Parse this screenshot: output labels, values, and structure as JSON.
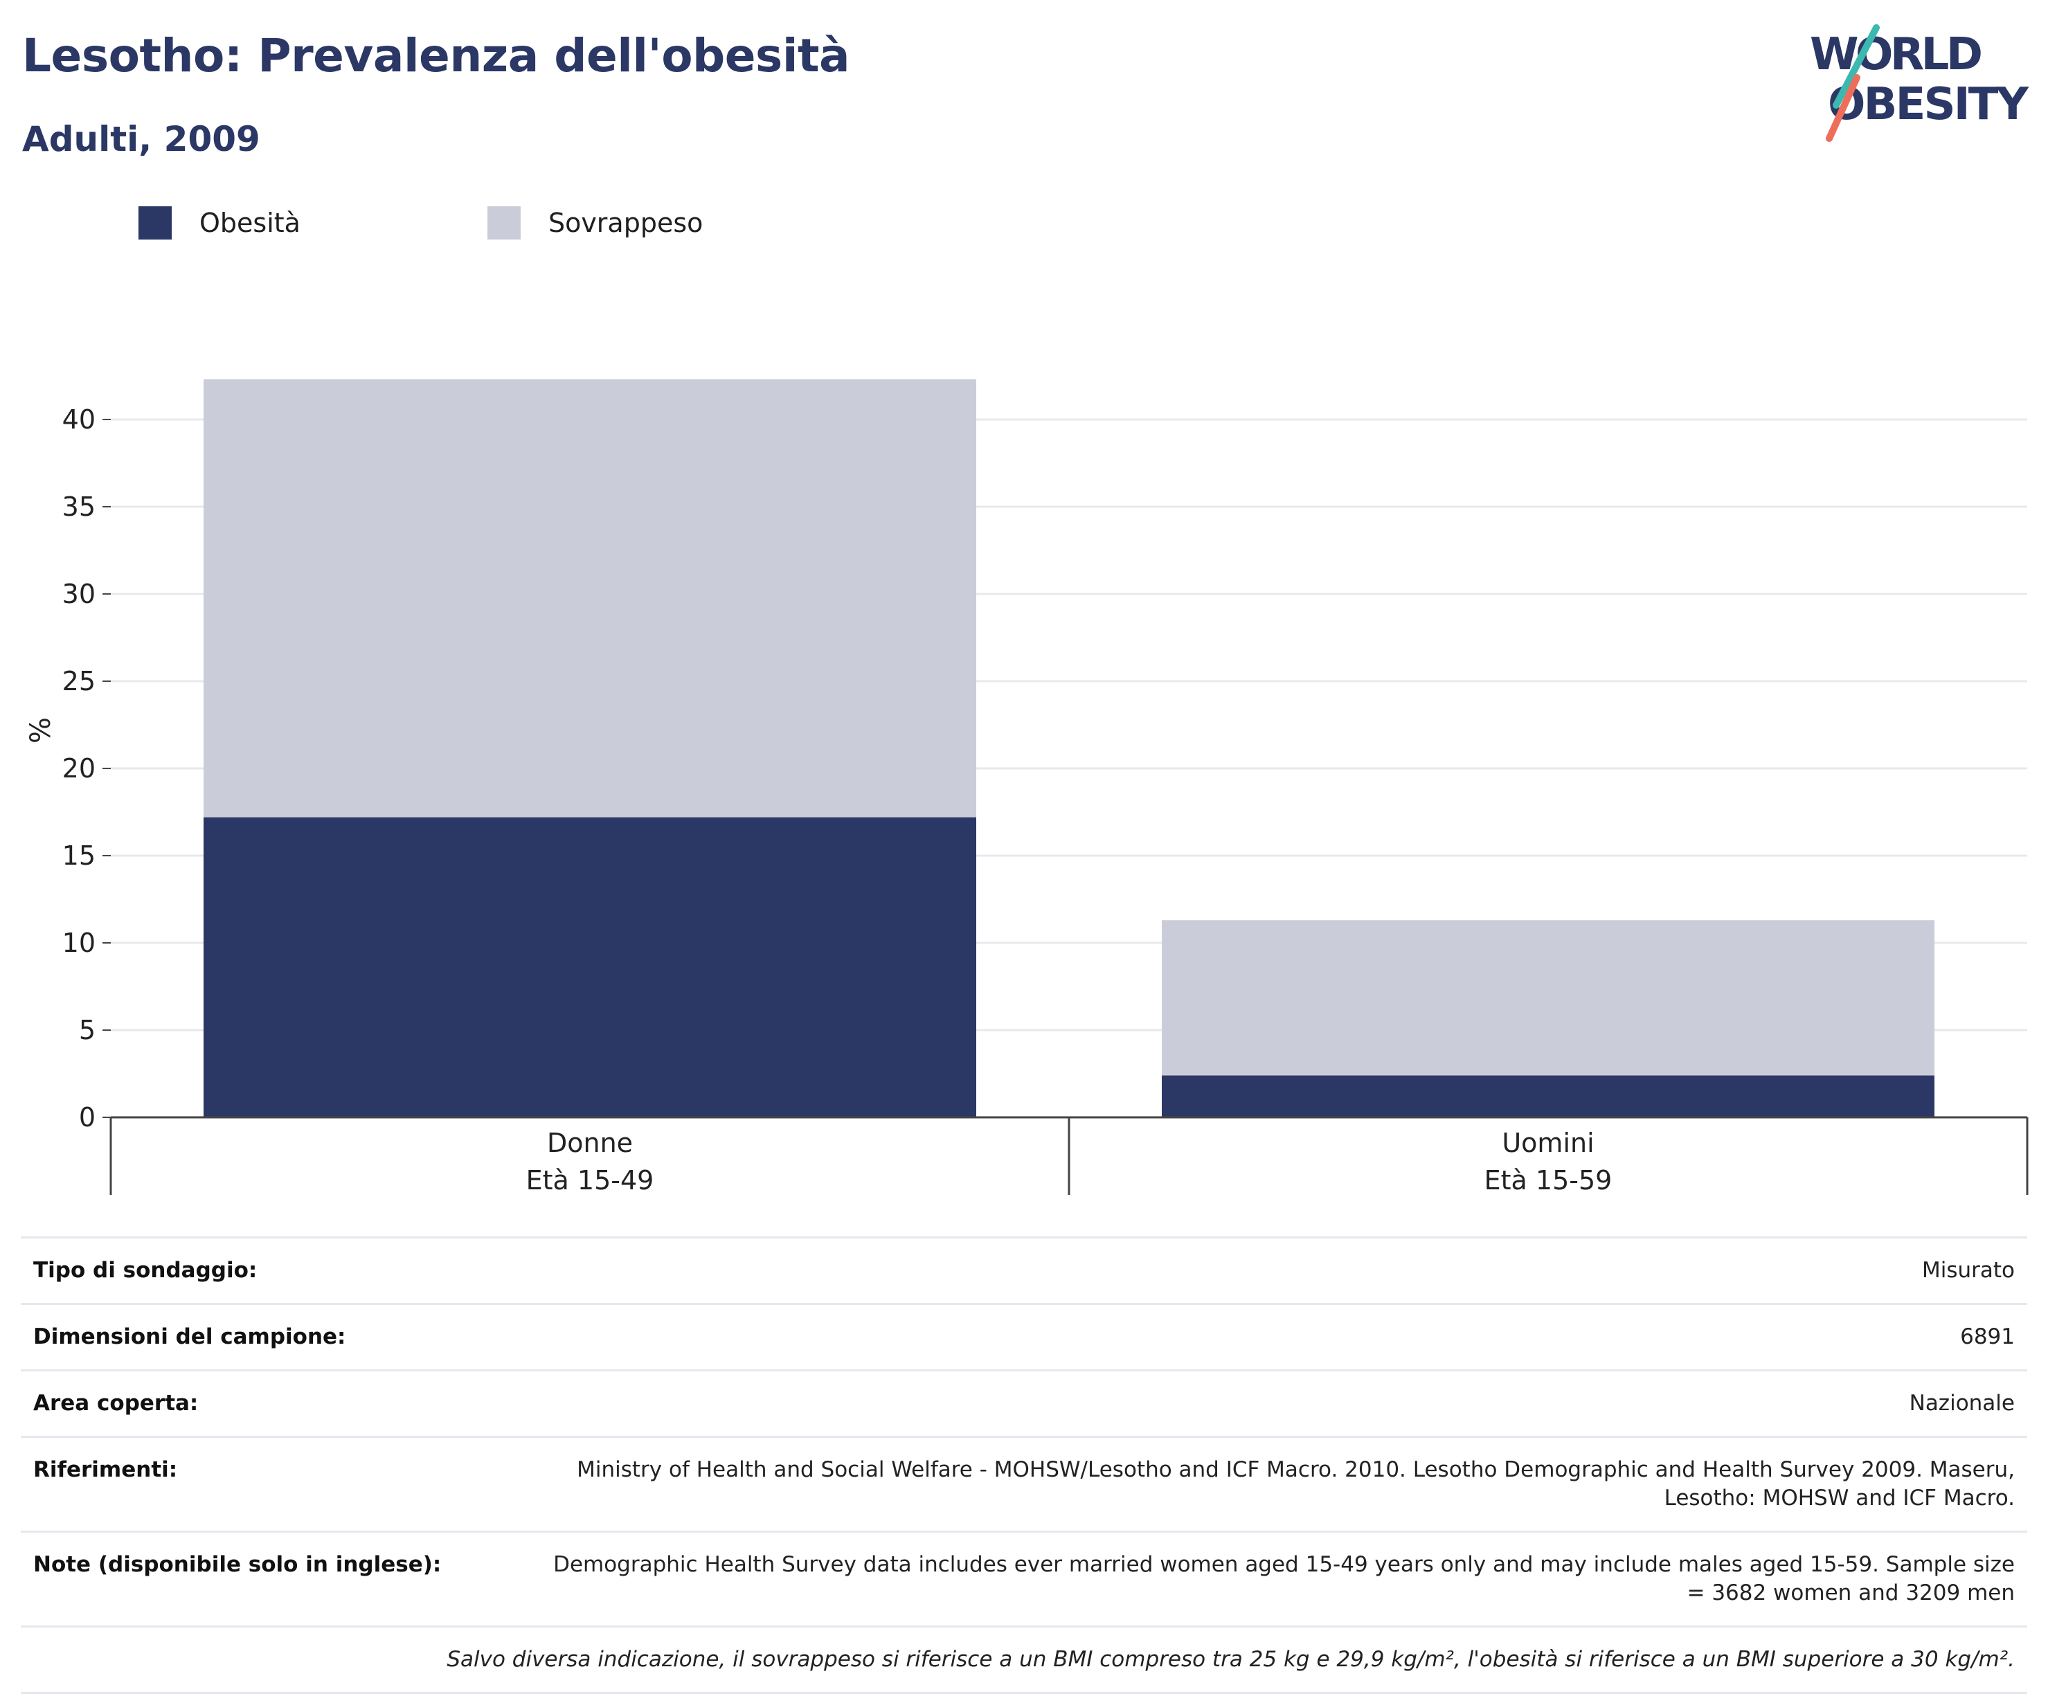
{
  "header": {
    "title": "Lesotho: Prevalenza dell'obesità",
    "subtitle": "Adulti, 2009"
  },
  "logo": {
    "line1": "WORLD",
    "line2": "OBESITY"
  },
  "colors": {
    "obesity": "#2b3764",
    "overweight": "#cacdd9",
    "title": "#2b3764",
    "logo_teal": "#3bb8b0",
    "logo_coral": "#ee6e5a"
  },
  "legend": {
    "obesity_label": "Obesità",
    "overweight_label": "Sovrappeso"
  },
  "chart_data": {
    "type": "bar",
    "stacked": true,
    "categories": [
      "Donne",
      "Uomini"
    ],
    "category_sublabels": [
      "Età 15-49",
      "Età 15-59"
    ],
    "series": [
      {
        "name": "Obesità",
        "values": [
          17.2,
          2.4
        ]
      },
      {
        "name": "Sovrappeso",
        "values": [
          25.1,
          8.9
        ]
      }
    ],
    "ylabel": "%",
    "ylim": [
      0,
      42.3
    ],
    "yticks": [
      0,
      5,
      10,
      15,
      20,
      25,
      30,
      35,
      40
    ],
    "grid": true,
    "legend_position": "top-left"
  },
  "info": {
    "rows": [
      {
        "key": "Tipo di sondaggio:",
        "value": "Misurato"
      },
      {
        "key": "Dimensioni del campione:",
        "value": "6891"
      },
      {
        "key": "Area coperta:",
        "value": "Nazionale"
      },
      {
        "key": "Riferimenti:",
        "value": "Ministry of Health and Social Welfare - MOHSW/Lesotho and ICF Macro. 2010. Lesotho Demographic and Health Survey 2009. Maseru, Lesotho: MOHSW and ICF Macro."
      },
      {
        "key": "Note (disponibile solo in inglese):",
        "value": "Demographic Health Survey data includes ever married women aged 15-49 years only and may include males aged 15-59. Sample size = 3682 women and 3209 men"
      }
    ],
    "footnote": "Salvo diversa indicazione, il sovrappeso si riferisce a un BMI compreso tra 25 kg e 29,9 kg/m², l'obesità si riferisce a un BMI superiore a 30 kg/m²."
  }
}
